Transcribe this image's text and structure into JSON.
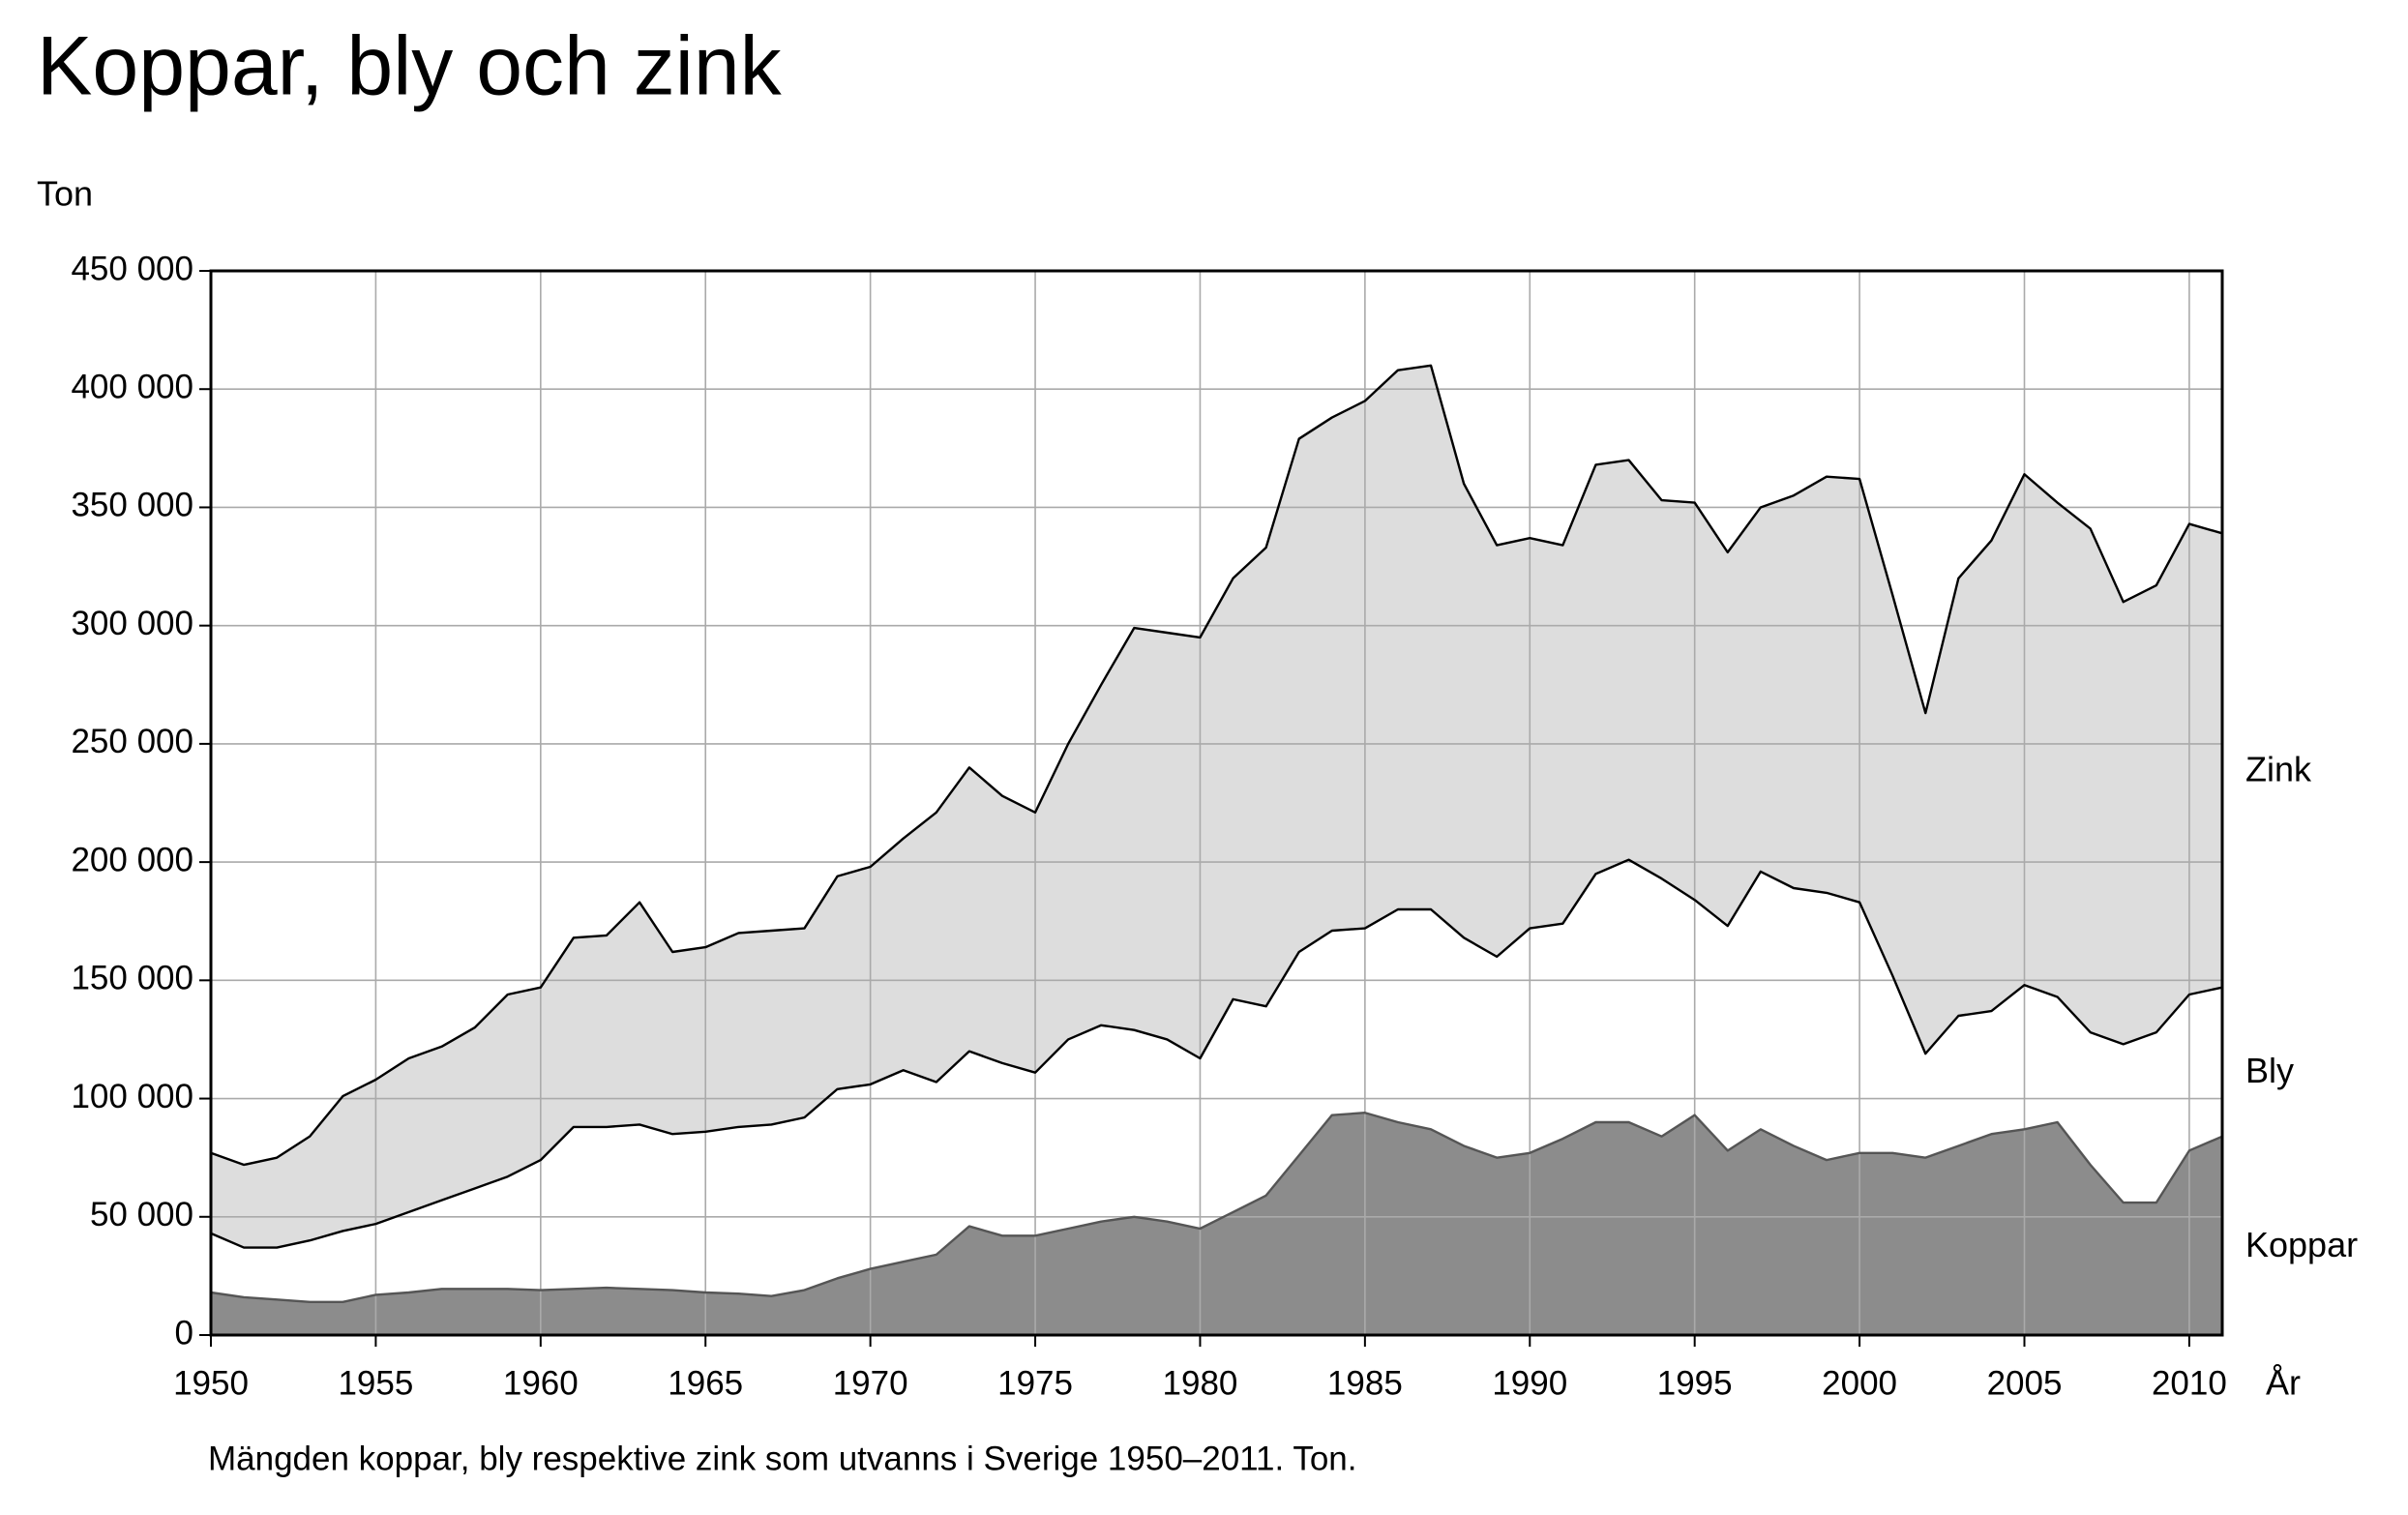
{
  "chart_data": {
    "type": "stacked_area",
    "title": "Koppar, bly och zink",
    "y_label": "Ton",
    "x_label": "År",
    "caption": "Mängden koppar, bly respektive zink som utvanns i Sverige 1950–2011. Ton.",
    "x": [
      1950,
      1951,
      1952,
      1953,
      1954,
      1955,
      1956,
      1957,
      1958,
      1959,
      1960,
      1961,
      1962,
      1963,
      1964,
      1965,
      1966,
      1967,
      1968,
      1969,
      1970,
      1971,
      1972,
      1973,
      1974,
      1975,
      1976,
      1977,
      1978,
      1979,
      1980,
      1981,
      1982,
      1983,
      1984,
      1985,
      1986,
      1987,
      1988,
      1989,
      1990,
      1991,
      1992,
      1993,
      1994,
      1995,
      1996,
      1997,
      1998,
      1999,
      2000,
      2001,
      2002,
      2003,
      2004,
      2005,
      2006,
      2007,
      2008,
      2009,
      2010,
      2011
    ],
    "series": [
      {
        "name": "Koppar",
        "color": "#8c8c8c",
        "line_color": "#555555",
        "values": [
          18000,
          16000,
          15000,
          14000,
          14000,
          17000,
          18000,
          19500,
          19500,
          19500,
          19000,
          19500,
          20000,
          19500,
          19000,
          18000,
          17500,
          16500,
          19000,
          24000,
          28000,
          31000,
          34000,
          46000,
          42000,
          42000,
          45000,
          48000,
          50000,
          48000,
          45000,
          52000,
          59000,
          76000,
          93000,
          94000,
          90000,
          87000,
          80000,
          75000,
          77000,
          83000,
          90000,
          90000,
          84000,
          93000,
          78000,
          87000,
          80000,
          74000,
          77000,
          77000,
          75000,
          80000,
          85000,
          87000,
          90000,
          72000,
          56000,
          56000,
          78000,
          84000
        ]
      },
      {
        "name": "Bly",
        "color": "#ffffff",
        "line_color": "#000000",
        "values": [
          25000,
          21000,
          22000,
          26000,
          30000,
          30000,
          34000,
          37500,
          42500,
          47500,
          55000,
          68500,
          68000,
          69500,
          66000,
          68000,
          70500,
          72500,
          73000,
          80000,
          78000,
          81000,
          73000,
          74000,
          73000,
          69000,
          80000,
          83000,
          79000,
          77000,
          72000,
          90000,
          80000,
          86000,
          78000,
          78000,
          90000,
          93000,
          88000,
          85000,
          95000,
          91000,
          105000,
          111000,
          109000,
          91000,
          95000,
          109000,
          109000,
          113000,
          106000,
          75000,
          44000,
          55000,
          52000,
          61000,
          53000,
          56000,
          67000,
          72000,
          66000,
          63000
        ]
      },
      {
        "name": "Zink",
        "color": "#dddddd",
        "line_color": "#000000",
        "values": [
          34000,
          35000,
          38000,
          44000,
          57000,
          61000,
          65000,
          65000,
          68000,
          77000,
          73000,
          80000,
          81000,
          94000,
          77000,
          78000,
          82000,
          82000,
          80000,
          90000,
          92000,
          98000,
          114000,
          120000,
          113000,
          110000,
          125000,
          144000,
          170000,
          172000,
          178000,
          178000,
          194000,
          217000,
          217000,
          223000,
          228000,
          230000,
          192000,
          174000,
          165000,
          160000,
          173000,
          169000,
          160000,
          168000,
          158000,
          154000,
          166000,
          176000,
          179000,
          161000,
          144000,
          185000,
          199000,
          216000,
          209000,
          213000,
          187000,
          189000,
          199000,
          192000
        ]
      }
    ],
    "xlim": [
      1950,
      2011
    ],
    "xticks": [
      1950,
      1955,
      1960,
      1965,
      1970,
      1975,
      1980,
      1985,
      1990,
      1995,
      2000,
      2005,
      2010
    ],
    "ylim": [
      0,
      450000
    ],
    "yticks": [
      0,
      {
        "value": 50000,
        "label": "50 000"
      },
      {
        "value": 100000,
        "label": "100 000"
      },
      {
        "value": 150000,
        "label": "150 000"
      },
      {
        "value": 200000,
        "label": "200 000"
      },
      {
        "value": 250000,
        "label": "250 000"
      },
      {
        "value": 300000,
        "label": "300 000"
      },
      {
        "value": 350000,
        "label": "350 000"
      },
      {
        "value": 400000,
        "label": "400 000"
      },
      {
        "value": 450000,
        "label": "450 000"
      }
    ],
    "grid": true
  }
}
